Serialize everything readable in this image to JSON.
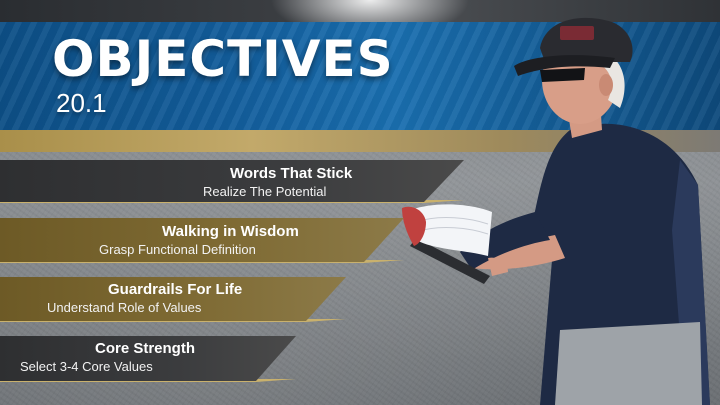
{
  "header": {
    "title": "OBJECTIVES",
    "subtitle": "20.1"
  },
  "objectives": [
    {
      "title": "Words That Stick",
      "subtitle": "Realize The Potential"
    },
    {
      "title": "Walking in Wisdom",
      "subtitle": "Grasp Functional Definition"
    },
    {
      "title": "Guardrails For Life",
      "subtitle": "Understand Role of Values"
    },
    {
      "title": "Core Strength",
      "subtitle": "Select 3-4 Core Values"
    }
  ],
  "colors": {
    "band_blue": "#125c9a",
    "gold_accent": "#c9b16d",
    "banner_dark": "#3b3c3e",
    "banner_gold": "#7e6a33"
  }
}
